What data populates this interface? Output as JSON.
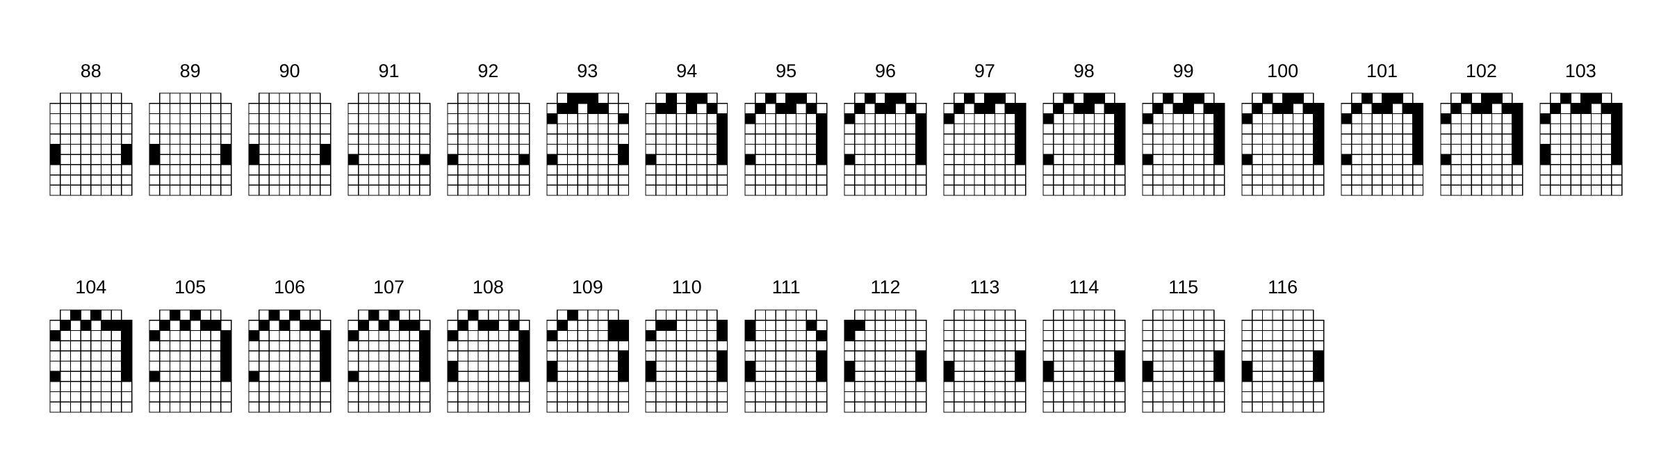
{
  "colors": {
    "background": "#ffffff",
    "filled": "#000000",
    "empty": "#ffffff",
    "stroke": "#000000"
  },
  "grid": {
    "columns": 8,
    "rows": 10,
    "cut_corners": true
  },
  "glyphs": [
    {
      "label": "88",
      "filled": [
        [
          5,
          0
        ],
        [
          5,
          7
        ],
        [
          6,
          0
        ],
        [
          6,
          7
        ]
      ]
    },
    {
      "label": "89",
      "filled": [
        [
          5,
          0
        ],
        [
          5,
          7
        ],
        [
          6,
          0
        ],
        [
          6,
          7
        ]
      ]
    },
    {
      "label": "90",
      "filled": [
        [
          5,
          0
        ],
        [
          5,
          7
        ],
        [
          6,
          0
        ],
        [
          6,
          7
        ]
      ]
    },
    {
      "label": "91",
      "filled": [
        [
          6,
          0
        ],
        [
          6,
          7
        ]
      ]
    },
    {
      "label": "92",
      "filled": [
        [
          6,
          0
        ],
        [
          6,
          7
        ]
      ]
    },
    {
      "label": "93",
      "filled": [
        [
          0,
          2
        ],
        [
          0,
          3
        ],
        [
          0,
          4
        ],
        [
          1,
          1
        ],
        [
          1,
          2
        ],
        [
          1,
          4
        ],
        [
          1,
          5
        ],
        [
          2,
          0
        ],
        [
          2,
          7
        ],
        [
          5,
          7
        ],
        [
          6,
          0
        ],
        [
          6,
          7
        ]
      ]
    },
    {
      "label": "94",
      "filled": [
        [
          0,
          2
        ],
        [
          0,
          4
        ],
        [
          0,
          5
        ],
        [
          1,
          1
        ],
        [
          1,
          2
        ],
        [
          1,
          4
        ],
        [
          1,
          6
        ],
        [
          2,
          7
        ],
        [
          3,
          7
        ],
        [
          4,
          7
        ],
        [
          5,
          7
        ],
        [
          6,
          0
        ],
        [
          6,
          7
        ]
      ]
    },
    {
      "label": "95",
      "filled": [
        [
          0,
          2
        ],
        [
          0,
          4
        ],
        [
          0,
          5
        ],
        [
          1,
          1
        ],
        [
          1,
          3
        ],
        [
          1,
          4
        ],
        [
          1,
          6
        ],
        [
          2,
          0
        ],
        [
          2,
          7
        ],
        [
          3,
          7
        ],
        [
          4,
          7
        ],
        [
          5,
          7
        ],
        [
          6,
          0
        ],
        [
          6,
          7
        ]
      ]
    },
    {
      "label": "96",
      "filled": [
        [
          0,
          2
        ],
        [
          0,
          4
        ],
        [
          0,
          5
        ],
        [
          1,
          1
        ],
        [
          1,
          3
        ],
        [
          1,
          4
        ],
        [
          1,
          6
        ],
        [
          2,
          0
        ],
        [
          2,
          7
        ],
        [
          3,
          7
        ],
        [
          4,
          7
        ],
        [
          5,
          7
        ],
        [
          6,
          0
        ],
        [
          6,
          7
        ]
      ]
    },
    {
      "label": "97",
      "filled": [
        [
          0,
          2
        ],
        [
          0,
          4
        ],
        [
          0,
          5
        ],
        [
          1,
          1
        ],
        [
          1,
          3
        ],
        [
          1,
          4
        ],
        [
          1,
          6
        ],
        [
          1,
          7
        ],
        [
          2,
          0
        ],
        [
          2,
          7
        ],
        [
          3,
          7
        ],
        [
          4,
          7
        ],
        [
          5,
          7
        ],
        [
          6,
          7
        ]
      ]
    },
    {
      "label": "98",
      "filled": [
        [
          0,
          2
        ],
        [
          0,
          4
        ],
        [
          0,
          5
        ],
        [
          1,
          1
        ],
        [
          1,
          3
        ],
        [
          1,
          4
        ],
        [
          1,
          6
        ],
        [
          1,
          7
        ],
        [
          2,
          0
        ],
        [
          2,
          7
        ],
        [
          3,
          7
        ],
        [
          4,
          7
        ],
        [
          5,
          7
        ],
        [
          6,
          0
        ],
        [
          6,
          7
        ]
      ]
    },
    {
      "label": "99",
      "filled": [
        [
          0,
          2
        ],
        [
          0,
          4
        ],
        [
          0,
          5
        ],
        [
          1,
          1
        ],
        [
          1,
          3
        ],
        [
          1,
          4
        ],
        [
          1,
          6
        ],
        [
          1,
          7
        ],
        [
          2,
          0
        ],
        [
          2,
          7
        ],
        [
          3,
          7
        ],
        [
          4,
          7
        ],
        [
          5,
          7
        ],
        [
          6,
          0
        ],
        [
          6,
          7
        ]
      ]
    },
    {
      "label": "100",
      "filled": [
        [
          0,
          2
        ],
        [
          0,
          4
        ],
        [
          0,
          5
        ],
        [
          1,
          1
        ],
        [
          1,
          3
        ],
        [
          1,
          4
        ],
        [
          1,
          6
        ],
        [
          1,
          7
        ],
        [
          2,
          0
        ],
        [
          2,
          7
        ],
        [
          3,
          7
        ],
        [
          4,
          7
        ],
        [
          5,
          7
        ],
        [
          6,
          0
        ],
        [
          6,
          7
        ]
      ]
    },
    {
      "label": "101",
      "filled": [
        [
          0,
          2
        ],
        [
          0,
          4
        ],
        [
          0,
          5
        ],
        [
          1,
          1
        ],
        [
          1,
          3
        ],
        [
          1,
          4
        ],
        [
          1,
          6
        ],
        [
          1,
          7
        ],
        [
          2,
          0
        ],
        [
          2,
          7
        ],
        [
          3,
          7
        ],
        [
          4,
          7
        ],
        [
          5,
          7
        ],
        [
          6,
          0
        ],
        [
          6,
          7
        ]
      ]
    },
    {
      "label": "102",
      "filled": [
        [
          0,
          2
        ],
        [
          0,
          4
        ],
        [
          0,
          5
        ],
        [
          1,
          1
        ],
        [
          1,
          3
        ],
        [
          1,
          4
        ],
        [
          1,
          6
        ],
        [
          1,
          7
        ],
        [
          2,
          0
        ],
        [
          2,
          7
        ],
        [
          3,
          7
        ],
        [
          4,
          7
        ],
        [
          5,
          7
        ],
        [
          6,
          0
        ],
        [
          6,
          7
        ]
      ]
    },
    {
      "label": "103",
      "filled": [
        [
          0,
          2
        ],
        [
          0,
          4
        ],
        [
          0,
          5
        ],
        [
          1,
          1
        ],
        [
          1,
          3
        ],
        [
          1,
          4
        ],
        [
          1,
          6
        ],
        [
          1,
          7
        ],
        [
          2,
          0
        ],
        [
          2,
          7
        ],
        [
          3,
          7
        ],
        [
          4,
          7
        ],
        [
          5,
          0
        ],
        [
          5,
          7
        ],
        [
          6,
          0
        ],
        [
          6,
          7
        ]
      ]
    },
    {
      "label": "104",
      "filled": [
        [
          0,
          2
        ],
        [
          0,
          4
        ],
        [
          1,
          1
        ],
        [
          1,
          3
        ],
        [
          1,
          5
        ],
        [
          1,
          6
        ],
        [
          1,
          7
        ],
        [
          2,
          0
        ],
        [
          2,
          7
        ],
        [
          3,
          7
        ],
        [
          4,
          7
        ],
        [
          5,
          7
        ],
        [
          6,
          0
        ],
        [
          6,
          7
        ]
      ]
    },
    {
      "label": "105",
      "filled": [
        [
          0,
          2
        ],
        [
          0,
          4
        ],
        [
          1,
          1
        ],
        [
          1,
          3
        ],
        [
          1,
          5
        ],
        [
          1,
          6
        ],
        [
          2,
          0
        ],
        [
          2,
          7
        ],
        [
          3,
          7
        ],
        [
          4,
          7
        ],
        [
          5,
          7
        ],
        [
          6,
          0
        ],
        [
          6,
          7
        ]
      ]
    },
    {
      "label": "106",
      "filled": [
        [
          0,
          2
        ],
        [
          0,
          4
        ],
        [
          1,
          1
        ],
        [
          1,
          3
        ],
        [
          1,
          5
        ],
        [
          1,
          6
        ],
        [
          2,
          0
        ],
        [
          2,
          7
        ],
        [
          3,
          7
        ],
        [
          4,
          7
        ],
        [
          5,
          7
        ],
        [
          6,
          0
        ],
        [
          6,
          7
        ]
      ]
    },
    {
      "label": "107",
      "filled": [
        [
          0,
          2
        ],
        [
          0,
          4
        ],
        [
          1,
          1
        ],
        [
          1,
          3
        ],
        [
          1,
          5
        ],
        [
          1,
          6
        ],
        [
          2,
          0
        ],
        [
          2,
          7
        ],
        [
          3,
          7
        ],
        [
          4,
          7
        ],
        [
          5,
          7
        ],
        [
          6,
          0
        ],
        [
          6,
          7
        ]
      ]
    },
    {
      "label": "108",
      "filled": [
        [
          0,
          2
        ],
        [
          1,
          1
        ],
        [
          1,
          3
        ],
        [
          1,
          4
        ],
        [
          1,
          6
        ],
        [
          2,
          0
        ],
        [
          2,
          7
        ],
        [
          3,
          7
        ],
        [
          4,
          7
        ],
        [
          5,
          0
        ],
        [
          5,
          7
        ],
        [
          6,
          0
        ],
        [
          6,
          7
        ]
      ]
    },
    {
      "label": "109",
      "filled": [
        [
          0,
          2
        ],
        [
          1,
          1
        ],
        [
          1,
          6
        ],
        [
          1,
          7
        ],
        [
          2,
          0
        ],
        [
          2,
          6
        ],
        [
          2,
          7
        ],
        [
          4,
          7
        ],
        [
          5,
          0
        ],
        [
          5,
          7
        ],
        [
          6,
          0
        ],
        [
          6,
          7
        ]
      ]
    },
    {
      "label": "110",
      "filled": [
        [
          1,
          1
        ],
        [
          1,
          2
        ],
        [
          1,
          7
        ],
        [
          2,
          0
        ],
        [
          2,
          7
        ],
        [
          4,
          7
        ],
        [
          5,
          0
        ],
        [
          5,
          7
        ],
        [
          6,
          0
        ],
        [
          6,
          7
        ]
      ]
    },
    {
      "label": "111",
      "filled": [
        [
          1,
          0
        ],
        [
          1,
          6
        ],
        [
          2,
          0
        ],
        [
          2,
          7
        ],
        [
          4,
          7
        ],
        [
          5,
          0
        ],
        [
          5,
          7
        ],
        [
          6,
          0
        ],
        [
          6,
          7
        ]
      ]
    },
    {
      "label": "112",
      "filled": [
        [
          1,
          0
        ],
        [
          1,
          1
        ],
        [
          2,
          0
        ],
        [
          4,
          7
        ],
        [
          5,
          0
        ],
        [
          5,
          7
        ],
        [
          6,
          0
        ],
        [
          6,
          7
        ]
      ]
    },
    {
      "label": "113",
      "filled": [
        [
          4,
          7
        ],
        [
          5,
          0
        ],
        [
          5,
          7
        ],
        [
          6,
          0
        ],
        [
          6,
          7
        ]
      ]
    },
    {
      "label": "114",
      "filled": [
        [
          4,
          7
        ],
        [
          5,
          0
        ],
        [
          5,
          7
        ],
        [
          6,
          0
        ],
        [
          6,
          7
        ]
      ]
    },
    {
      "label": "115",
      "filled": [
        [
          4,
          7
        ],
        [
          5,
          0
        ],
        [
          5,
          7
        ],
        [
          6,
          0
        ],
        [
          6,
          7
        ]
      ]
    },
    {
      "label": "116",
      "filled": [
        [
          4,
          7
        ],
        [
          5,
          0
        ],
        [
          5,
          7
        ],
        [
          6,
          0
        ],
        [
          6,
          7
        ]
      ]
    }
  ]
}
